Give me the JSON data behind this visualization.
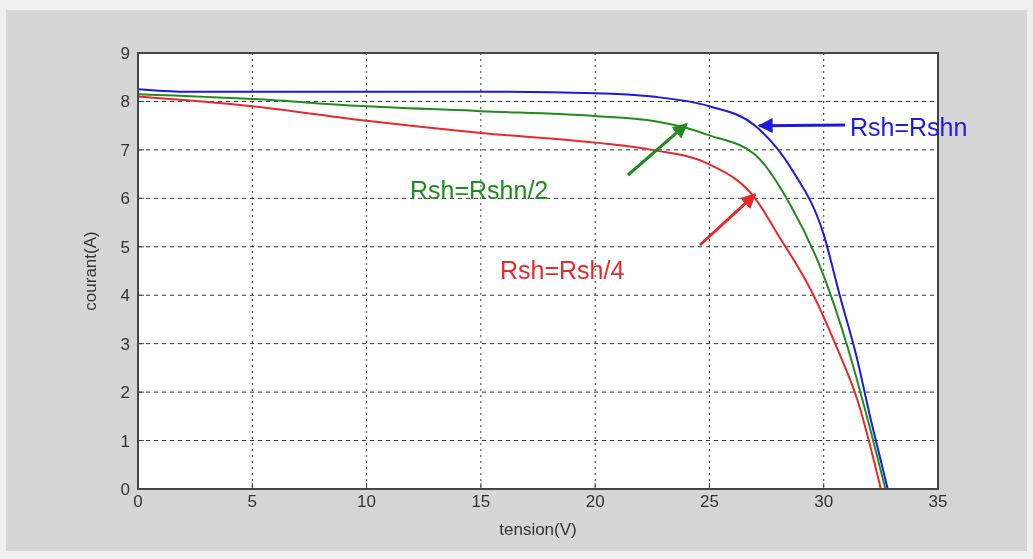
{
  "chart_data": {
    "type": "line",
    "xlabel": "tension(V)",
    "ylabel": "courant(A)",
    "xlim": [
      0,
      35
    ],
    "ylim": [
      0,
      9
    ],
    "xticks": [
      0,
      5,
      10,
      15,
      20,
      25,
      30,
      35
    ],
    "yticks": [
      0,
      1,
      2,
      3,
      4,
      5,
      6,
      7,
      8,
      9
    ],
    "grid": true,
    "line_style": "solid",
    "marker": "none",
    "series": [
      {
        "name": "Rsh=Rshn",
        "color": "#1a1ae0",
        "x": [
          0,
          2,
          5,
          10,
          15,
          20,
          22.5,
          25,
          27,
          28.6,
          30,
          30.7,
          31.4,
          32.1,
          32.8
        ],
        "values": [
          8.25,
          8.2,
          8.2,
          8.2,
          8.2,
          8.17,
          8.1,
          7.9,
          7.5,
          6.6,
          5.25,
          4.0,
          2.8,
          1.35,
          0
        ]
      },
      {
        "name": "Rsh=Rshn/2",
        "color": "#1e8c1e",
        "x": [
          0,
          5,
          10,
          15,
          20,
          22.5,
          24,
          25,
          27,
          28.5,
          30,
          31,
          32,
          32.7
        ],
        "values": [
          8.15,
          8.05,
          7.9,
          7.8,
          7.7,
          7.6,
          7.45,
          7.3,
          6.9,
          5.9,
          4.4,
          3.0,
          1.3,
          0
        ]
      },
      {
        "name": "Rsh=Rsh/4",
        "color": "#e8282a",
        "x": [
          0,
          5,
          10,
          15,
          20,
          22.5,
          25,
          27,
          28,
          29.5,
          30.5,
          31.5,
          32.5
        ],
        "values": [
          8.1,
          7.9,
          7.6,
          7.35,
          7.15,
          7.0,
          6.7,
          6.0,
          5.25,
          4.05,
          3.0,
          1.8,
          0
        ]
      }
    ]
  }
}
